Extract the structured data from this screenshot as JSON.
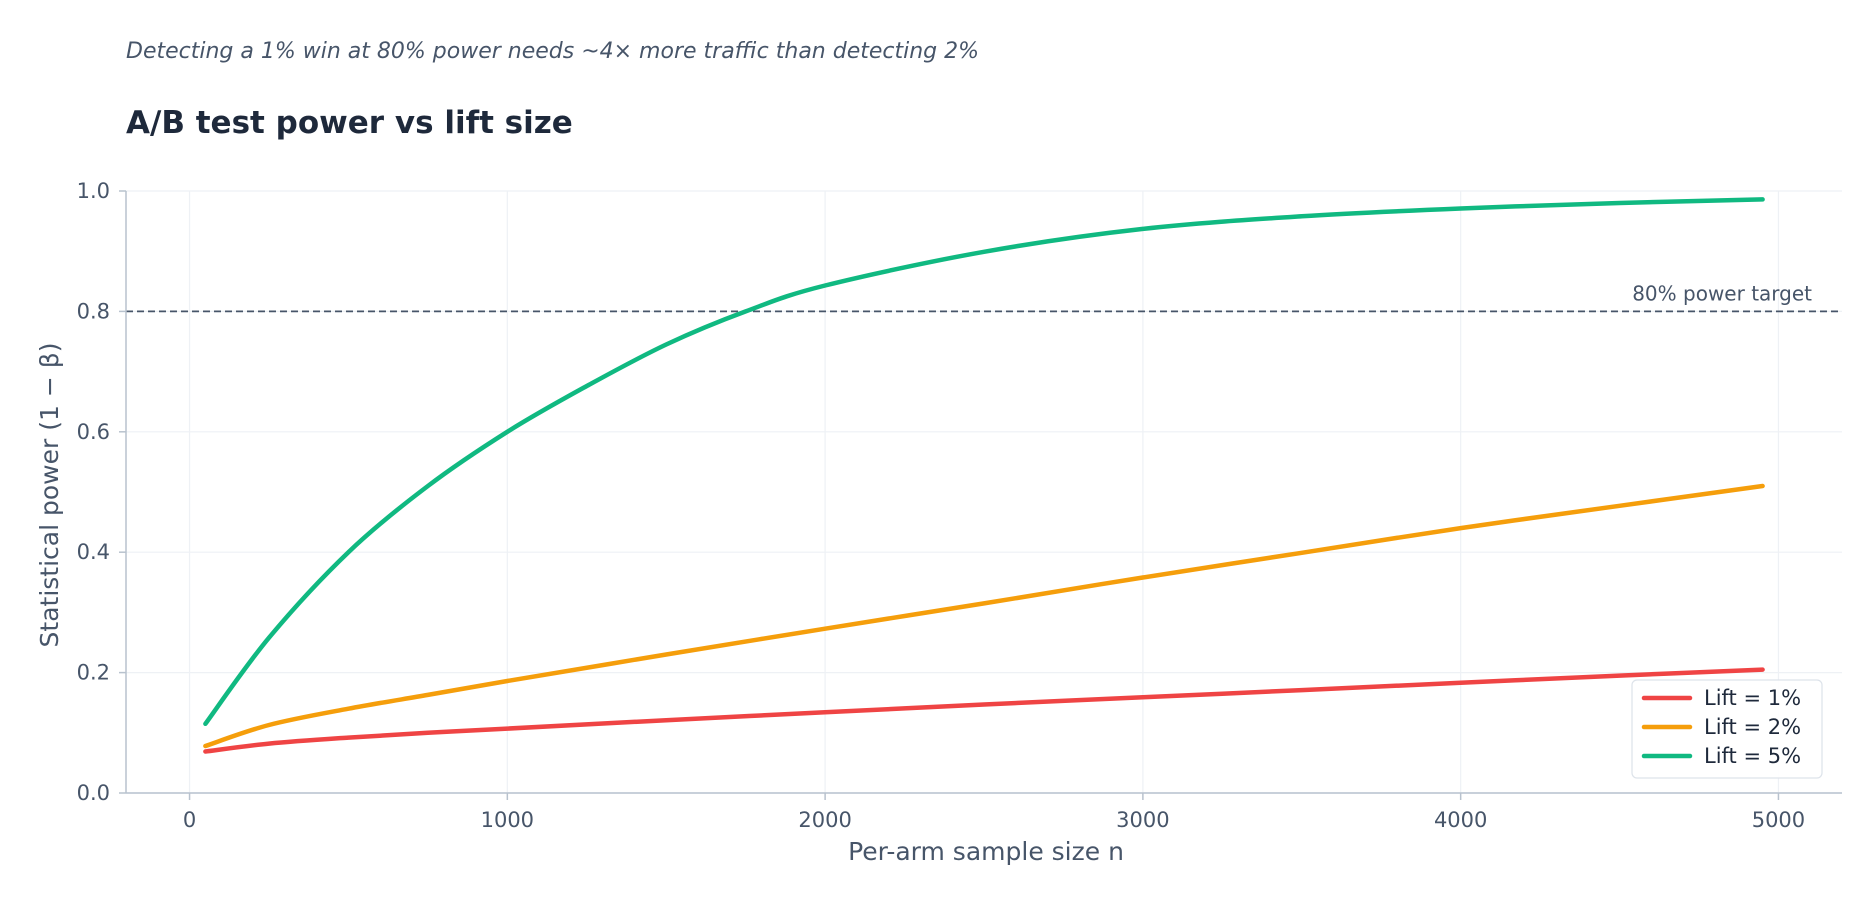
{
  "chart_data": {
    "type": "line",
    "subtitle": "Detecting a 1% win at 80% power needs ~4× more traffic than detecting 2%",
    "title": "A/B test power vs lift size",
    "xlabel": "Per-arm sample size n",
    "ylabel": "Statistical power (1 − β)",
    "xlim": [
      -200,
      5200
    ],
    "ylim": [
      0,
      1.0
    ],
    "x_ticks": [
      0,
      1000,
      2000,
      3000,
      4000,
      5000
    ],
    "x_tick_labels": [
      "0",
      "1000",
      "2000",
      "3000",
      "4000",
      "5000"
    ],
    "y_ticks": [
      0.0,
      0.2,
      0.4,
      0.6,
      0.8,
      1.0
    ],
    "y_tick_labels": [
      "0.0",
      "0.2",
      "0.4",
      "0.6",
      "0.8",
      "1.0"
    ],
    "grid": true,
    "legend_position": "bottom-right",
    "reference_line": {
      "y": 0.8,
      "label": "80% power target",
      "color": "#475569"
    },
    "series": [
      {
        "name": "Lift = 1%",
        "color": "#ef4444",
        "x": [
          50,
          250,
          500,
          750,
          1000,
          1500,
          2000,
          2500,
          3000,
          3500,
          4000,
          4500,
          4950
        ],
        "y": [
          0.069,
          0.082,
          0.092,
          0.1,
          0.107,
          0.121,
          0.134,
          0.147,
          0.159,
          0.171,
          0.183,
          0.195,
          0.205
        ]
      },
      {
        "name": "Lift = 2%",
        "color": "#f59e0b",
        "x": [
          50,
          250,
          500,
          750,
          1000,
          1500,
          2000,
          2500,
          3000,
          3500,
          4000,
          4500,
          4950
        ],
        "y": [
          0.078,
          0.113,
          0.14,
          0.163,
          0.186,
          0.23,
          0.273,
          0.315,
          0.358,
          0.399,
          0.44,
          0.477,
          0.51
        ]
      },
      {
        "name": "Lift = 5%",
        "color": "#10b981",
        "x": [
          50,
          250,
          500,
          750,
          1000,
          1250,
          1500,
          1750,
          2000,
          2500,
          3000,
          3500,
          4000,
          4500,
          4950
        ],
        "y": [
          0.115,
          0.258,
          0.4,
          0.51,
          0.6,
          0.676,
          0.745,
          0.8,
          0.843,
          0.899,
          0.937,
          0.958,
          0.971,
          0.98,
          0.986
        ]
      }
    ]
  }
}
